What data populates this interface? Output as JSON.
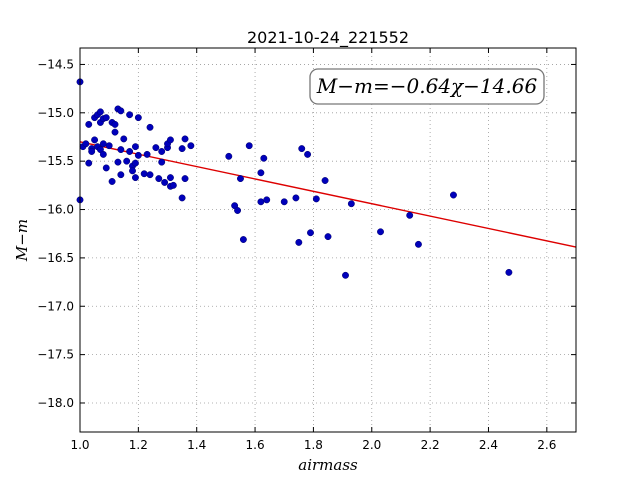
{
  "chart_data": {
    "type": "scatter",
    "title": "2021-10-24_221552",
    "xlabel": "airmass",
    "ylabel": "M−m",
    "xlim": [
      1.0,
      2.7
    ],
    "ylim": [
      -18.3,
      -14.33
    ],
    "y_inverted": true,
    "grid": true,
    "x_ticks": [
      1.0,
      1.2,
      1.4,
      1.6,
      1.8,
      2.0,
      2.2,
      2.4,
      2.6
    ],
    "x_tick_labels": [
      "1.0",
      "1.2",
      "1.4",
      "1.6",
      "1.8",
      "2.0",
      "2.2",
      "2.4",
      "2.6"
    ],
    "y_ticks": [
      -14.5,
      -15.0,
      -15.5,
      -16.0,
      -16.5,
      -17.0,
      -17.5,
      -18.0
    ],
    "y_tick_labels": [
      "−14.5",
      "−15.0",
      "−15.5",
      "−16.0",
      "−16.5",
      "−17.0",
      "−17.5",
      "−18.0"
    ],
    "fit_annotation": "M−m=−0.64χ−14.66",
    "fit_line": {
      "slope": -0.64,
      "intercept": -14.66,
      "color": "#dd0000"
    },
    "point_color": "#0000bb",
    "points": [
      [
        1.0,
        -14.68
      ],
      [
        1.0,
        -15.9
      ],
      [
        1.01,
        -15.35
      ],
      [
        1.02,
        -15.32
      ],
      [
        1.03,
        -15.12
      ],
      [
        1.03,
        -15.52
      ],
      [
        1.04,
        -15.37
      ],
      [
        1.04,
        -15.4
      ],
      [
        1.05,
        -15.05
      ],
      [
        1.05,
        -15.28
      ],
      [
        1.06,
        -15.02
      ],
      [
        1.06,
        -15.35
      ],
      [
        1.07,
        -14.99
      ],
      [
        1.07,
        -15.1
      ],
      [
        1.07,
        -15.38
      ],
      [
        1.08,
        -15.06
      ],
      [
        1.08,
        -15.32
      ],
      [
        1.08,
        -15.43
      ],
      [
        1.09,
        -15.05
      ],
      [
        1.09,
        -15.57
      ],
      [
        1.1,
        -15.34
      ],
      [
        1.11,
        -15.1
      ],
      [
        1.11,
        -15.71
      ],
      [
        1.12,
        -15.12
      ],
      [
        1.12,
        -15.2
      ],
      [
        1.13,
        -14.96
      ],
      [
        1.13,
        -15.51
      ],
      [
        1.14,
        -14.98
      ],
      [
        1.14,
        -15.64
      ],
      [
        1.14,
        -15.38
      ],
      [
        1.15,
        -15.27
      ],
      [
        1.16,
        -15.5
      ],
      [
        1.17,
        -15.02
      ],
      [
        1.17,
        -15.4
      ],
      [
        1.18,
        -15.55
      ],
      [
        1.18,
        -15.6
      ],
      [
        1.19,
        -15.35
      ],
      [
        1.19,
        -15.67
      ],
      [
        1.19,
        -15.52
      ],
      [
        1.2,
        -15.05
      ],
      [
        1.2,
        -15.44
      ],
      [
        1.22,
        -15.63
      ],
      [
        1.23,
        -15.43
      ],
      [
        1.24,
        -15.15
      ],
      [
        1.24,
        -15.64
      ],
      [
        1.26,
        -15.36
      ],
      [
        1.27,
        -15.68
      ],
      [
        1.28,
        -15.4
      ],
      [
        1.28,
        -15.51
      ],
      [
        1.29,
        -15.72
      ],
      [
        1.3,
        -15.36
      ],
      [
        1.3,
        -15.32
      ],
      [
        1.31,
        -15.28
      ],
      [
        1.31,
        -15.67
      ],
      [
        1.31,
        -15.76
      ],
      [
        1.32,
        -15.75
      ],
      [
        1.35,
        -15.88
      ],
      [
        1.35,
        -15.37
      ],
      [
        1.36,
        -15.27
      ],
      [
        1.36,
        -15.68
      ],
      [
        1.38,
        -15.34
      ],
      [
        1.51,
        -15.45
      ],
      [
        1.53,
        -15.96
      ],
      [
        1.54,
        -16.01
      ],
      [
        1.55,
        -15.68
      ],
      [
        1.56,
        -16.31
      ],
      [
        1.58,
        -15.34
      ],
      [
        1.62,
        -15.92
      ],
      [
        1.62,
        -15.62
      ],
      [
        1.63,
        -15.47
      ],
      [
        1.64,
        -15.9
      ],
      [
        1.7,
        -15.92
      ],
      [
        1.74,
        -15.88
      ],
      [
        1.75,
        -16.34
      ],
      [
        1.76,
        -15.37
      ],
      [
        1.78,
        -15.43
      ],
      [
        1.79,
        -16.24
      ],
      [
        1.81,
        -15.89
      ],
      [
        1.84,
        -15.7
      ],
      [
        1.85,
        -16.28
      ],
      [
        1.91,
        -16.68
      ],
      [
        1.93,
        -15.94
      ],
      [
        2.03,
        -16.23
      ],
      [
        2.13,
        -16.06
      ],
      [
        2.16,
        -16.36
      ],
      [
        2.28,
        -15.85
      ],
      [
        2.47,
        -16.65
      ]
    ]
  }
}
